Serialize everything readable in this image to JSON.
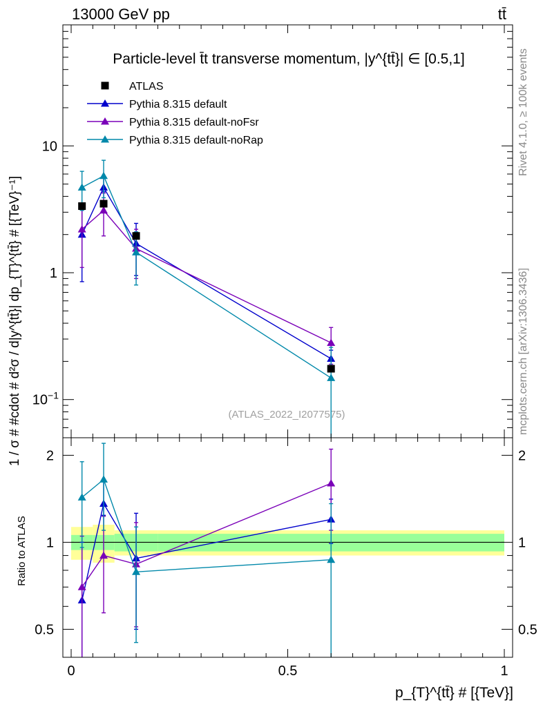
{
  "header": {
    "left": "13000 GeV pp",
    "right": "tt̄"
  },
  "side_labels": {
    "rivet": "Rivet 4.1.0, ≥ 100k events",
    "mcplots": "mcplots.cern.ch [arXiv:1306.3436]"
  },
  "chart_data": {
    "type": "line",
    "title": "Particle-level t̄t transverse momentum, |y^{tt̄}| ∈ [0.5,1]",
    "watermark": "(ATLAS_2022_I2077575)",
    "xlabel": "p_{T}^{tt̄} # [{TeV}]",
    "ylabel": "1 / σ # #cdot # d²σ / d|y^{tt̄}| dp_{T}^{tt̄} # [{TeV}⁻¹]",
    "ratio_ylabel": "Ratio to ATLAS",
    "xlim": [
      0,
      1
    ],
    "ylim": [
      0.05,
      90
    ],
    "ratio_ylim": [
      0.4,
      2.3
    ],
    "yscale": "log",
    "ratio_yscale": "log",
    "x_ticks": [
      "0",
      "0.5",
      "1"
    ],
    "y_ticks": [
      "10^{-1}",
      "1",
      "10"
    ],
    "ratio_y_ticks": [
      "0.5",
      "1",
      "2"
    ],
    "bins": [
      [
        0,
        0.05
      ],
      [
        0.05,
        0.1
      ],
      [
        0.1,
        0.2
      ],
      [
        0.2,
        1.0
      ]
    ],
    "x": [
      0.025,
      0.075,
      0.15,
      0.6
    ],
    "data": {
      "name": "ATLAS",
      "values": [
        3.35,
        3.5,
        1.95,
        0.175
      ],
      "band_inner": [
        0.06,
        0.06,
        0.07,
        0.07
      ],
      "band_outer": [
        0.13,
        0.15,
        0.1,
        0.1
      ],
      "color": "#000000"
    },
    "series": [
      {
        "name": "Pythia 8.315 default",
        "color": "#0000cc",
        "values": [
          2.0,
          4.7,
          1.7,
          0.21
        ],
        "err_low": [
          1.15,
          0.35,
          0.75,
          0.035
        ],
        "err_high": [
          1.2,
          1.0,
          0.75,
          0.035
        ],
        "ratio": [
          0.63,
          1.36,
          0.88,
          1.2
        ],
        "ratio_err_low": [
          0.34,
          0.12,
          0.38,
          0.21
        ],
        "ratio_err_high": [
          0.37,
          0.29,
          0.38,
          0.21
        ]
      },
      {
        "name": "Pythia 8.315 default-noFsr",
        "color": "#7a00b8",
        "values": [
          2.2,
          3.1,
          1.55,
          0.28
        ],
        "err_low": [
          1.1,
          1.15,
          0.65,
          0.09
        ],
        "err_high": [
          1.1,
          1.15,
          0.65,
          0.09
        ],
        "ratio": [
          0.7,
          0.9,
          0.84,
          1.6
        ],
        "ratio_err_low": [
          0.35,
          0.33,
          0.33,
          0.5
        ],
        "ratio_err_high": [
          0.35,
          0.33,
          0.33,
          0.5
        ]
      },
      {
        "name": "Pythia 8.315 default-noRap",
        "color": "#0088aa",
        "values": [
          4.7,
          5.8,
          1.45,
          0.148
        ],
        "err_low": [
          1.6,
          1.9,
          0.65,
          0.11
        ],
        "err_high": [
          1.6,
          1.9,
          0.65,
          0.11
        ],
        "ratio": [
          1.43,
          1.65,
          0.79,
          0.87
        ],
        "ratio_err_low": [
          0.47,
          0.55,
          0.34,
          0.49
        ],
        "ratio_err_high": [
          0.47,
          0.55,
          0.34,
          0.49
        ]
      }
    ]
  }
}
